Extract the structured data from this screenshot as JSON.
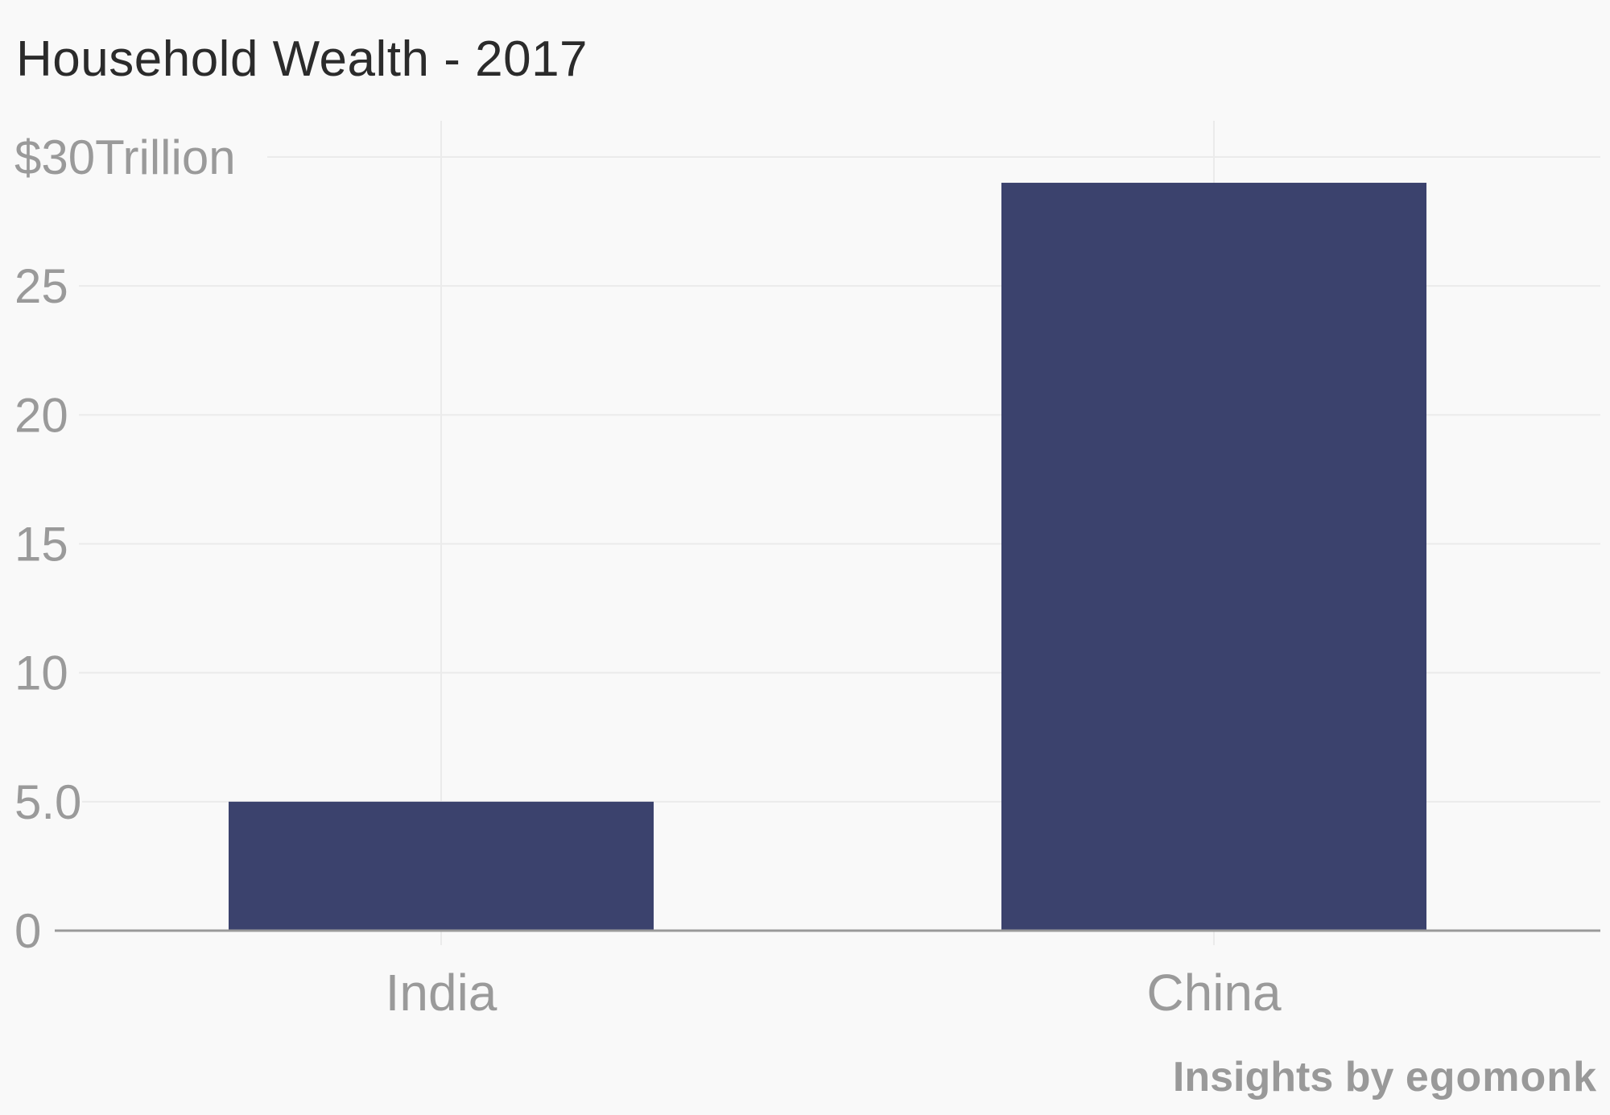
{
  "chart_data": {
    "type": "bar",
    "title": "Household Wealth - 2017",
    "categories": [
      "India",
      "China"
    ],
    "values": [
      5,
      29
    ],
    "ylim": [
      0,
      30
    ],
    "yticks": [
      {
        "value": 30,
        "label": "$30Trillion"
      },
      {
        "value": 25,
        "label": "25"
      },
      {
        "value": 20,
        "label": "20"
      },
      {
        "value": 15,
        "label": "15"
      },
      {
        "value": 10,
        "label": "10"
      },
      {
        "value": 5,
        "label": "5.0"
      },
      {
        "value": 0,
        "label": "0"
      }
    ],
    "grid": true,
    "bar_color": "#3b426d"
  },
  "credit": {
    "prefix": "Insights by",
    "brand": "egomonk"
  }
}
